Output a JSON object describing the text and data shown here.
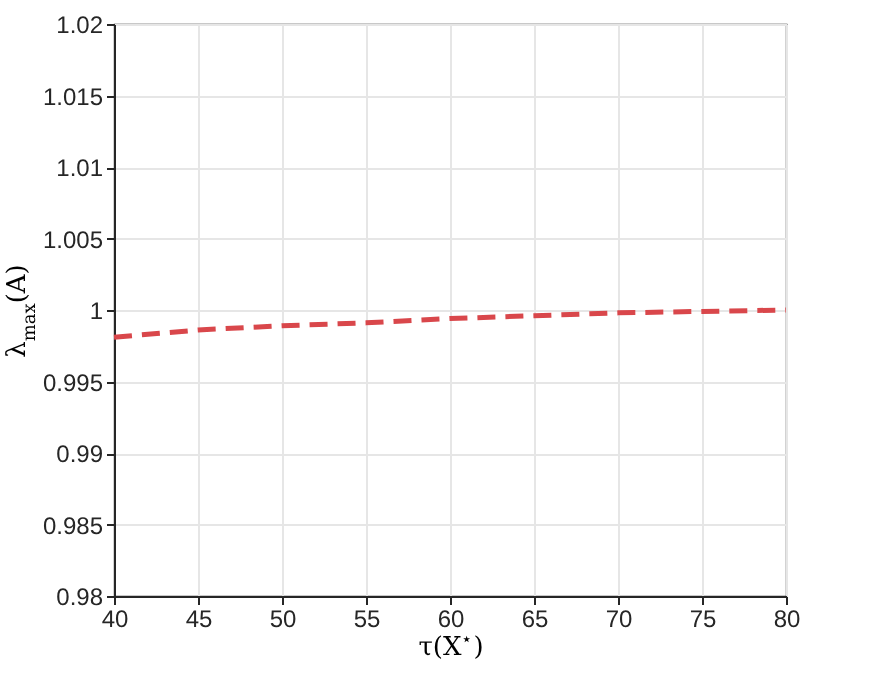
{
  "chart_data": {
    "type": "line",
    "xlabel": "τ(X$^{⋆}$)",
    "ylabel": "λ$_{max}$(A)",
    "x": [
      40,
      45,
      50,
      55,
      60,
      65,
      70,
      75,
      80
    ],
    "series": [
      {
        "color": "#d9474b",
        "values": [
          0.9981,
          0.9986,
          0.9989,
          0.9991,
          0.9994,
          0.9996,
          0.9998,
          0.9999,
          1.0
        ]
      }
    ],
    "xlim": [
      40,
      80
    ],
    "xticks": [
      40,
      45,
      50,
      55,
      60,
      65,
      70,
      75,
      80
    ],
    "ylim": [
      0.98,
      1.02
    ],
    "yticks": [
      0.98,
      0.985,
      0.99,
      0.995,
      1,
      1.005,
      1.01,
      1.015,
      1.02
    ],
    "grid": true,
    "line_style": "dashed"
  }
}
